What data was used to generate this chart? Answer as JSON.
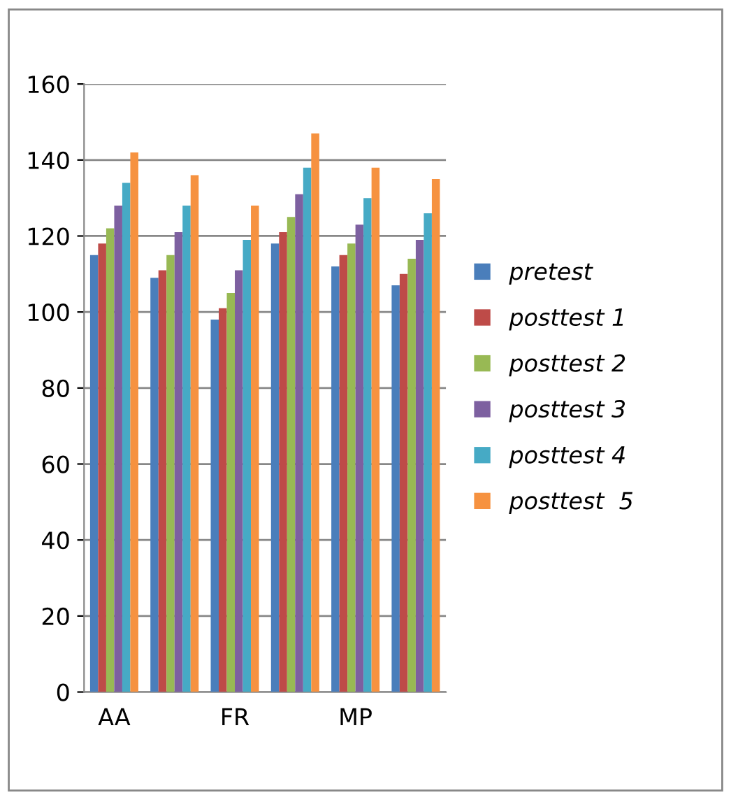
{
  "chart_data": {
    "type": "bar",
    "categories": [
      "AA",
      null,
      "FR",
      null,
      "MP",
      null
    ],
    "series": [
      {
        "name": "pretest",
        "color": "#4a7ebb",
        "values": [
          115,
          109,
          98,
          118,
          112,
          107
        ]
      },
      {
        "name": "posttest 1",
        "color": "#be4b48",
        "values": [
          118,
          111,
          101,
          121,
          115,
          110
        ]
      },
      {
        "name": "posttest 2",
        "color": "#98b954",
        "values": [
          122,
          115,
          105,
          125,
          118,
          114
        ]
      },
      {
        "name": "posttest 3",
        "color": "#7d60a0",
        "values": [
          128,
          121,
          111,
          131,
          123,
          119
        ]
      },
      {
        "name": "posttest 4",
        "color": "#46aac5",
        "values": [
          134,
          128,
          119,
          138,
          130,
          126
        ]
      },
      {
        "name": "posttest  5",
        "color": "#f69240",
        "values": [
          142,
          136,
          128,
          147,
          138,
          135
        ]
      }
    ],
    "ylim": [
      0,
      160
    ],
    "yticks": [
      0,
      20,
      40,
      60,
      80,
      100,
      120,
      140,
      160
    ],
    "grid": "y",
    "legend": "right"
  }
}
